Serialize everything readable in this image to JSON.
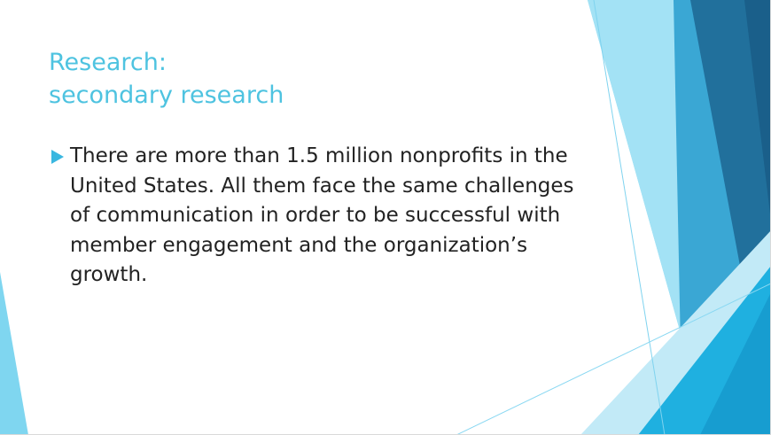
{
  "slide": {
    "title_line1": "Research:",
    "title_line2": "secondary research",
    "bullets": [
      {
        "text": "There are more than 1.5 million nonprofits in the United States. All them face the same challenges of communication in order to be successful with member engagement and the organization’s growth."
      }
    ]
  },
  "colors": {
    "title": "#4ec3e0",
    "body_text": "#222222",
    "bullet_marker": "#3ab7e0",
    "accent_light": "#6dd1f0",
    "accent_mid": "#1fb0e0",
    "accent_dark": "#21709c"
  },
  "icons": {
    "bullet": "triangle-bullet-icon"
  }
}
